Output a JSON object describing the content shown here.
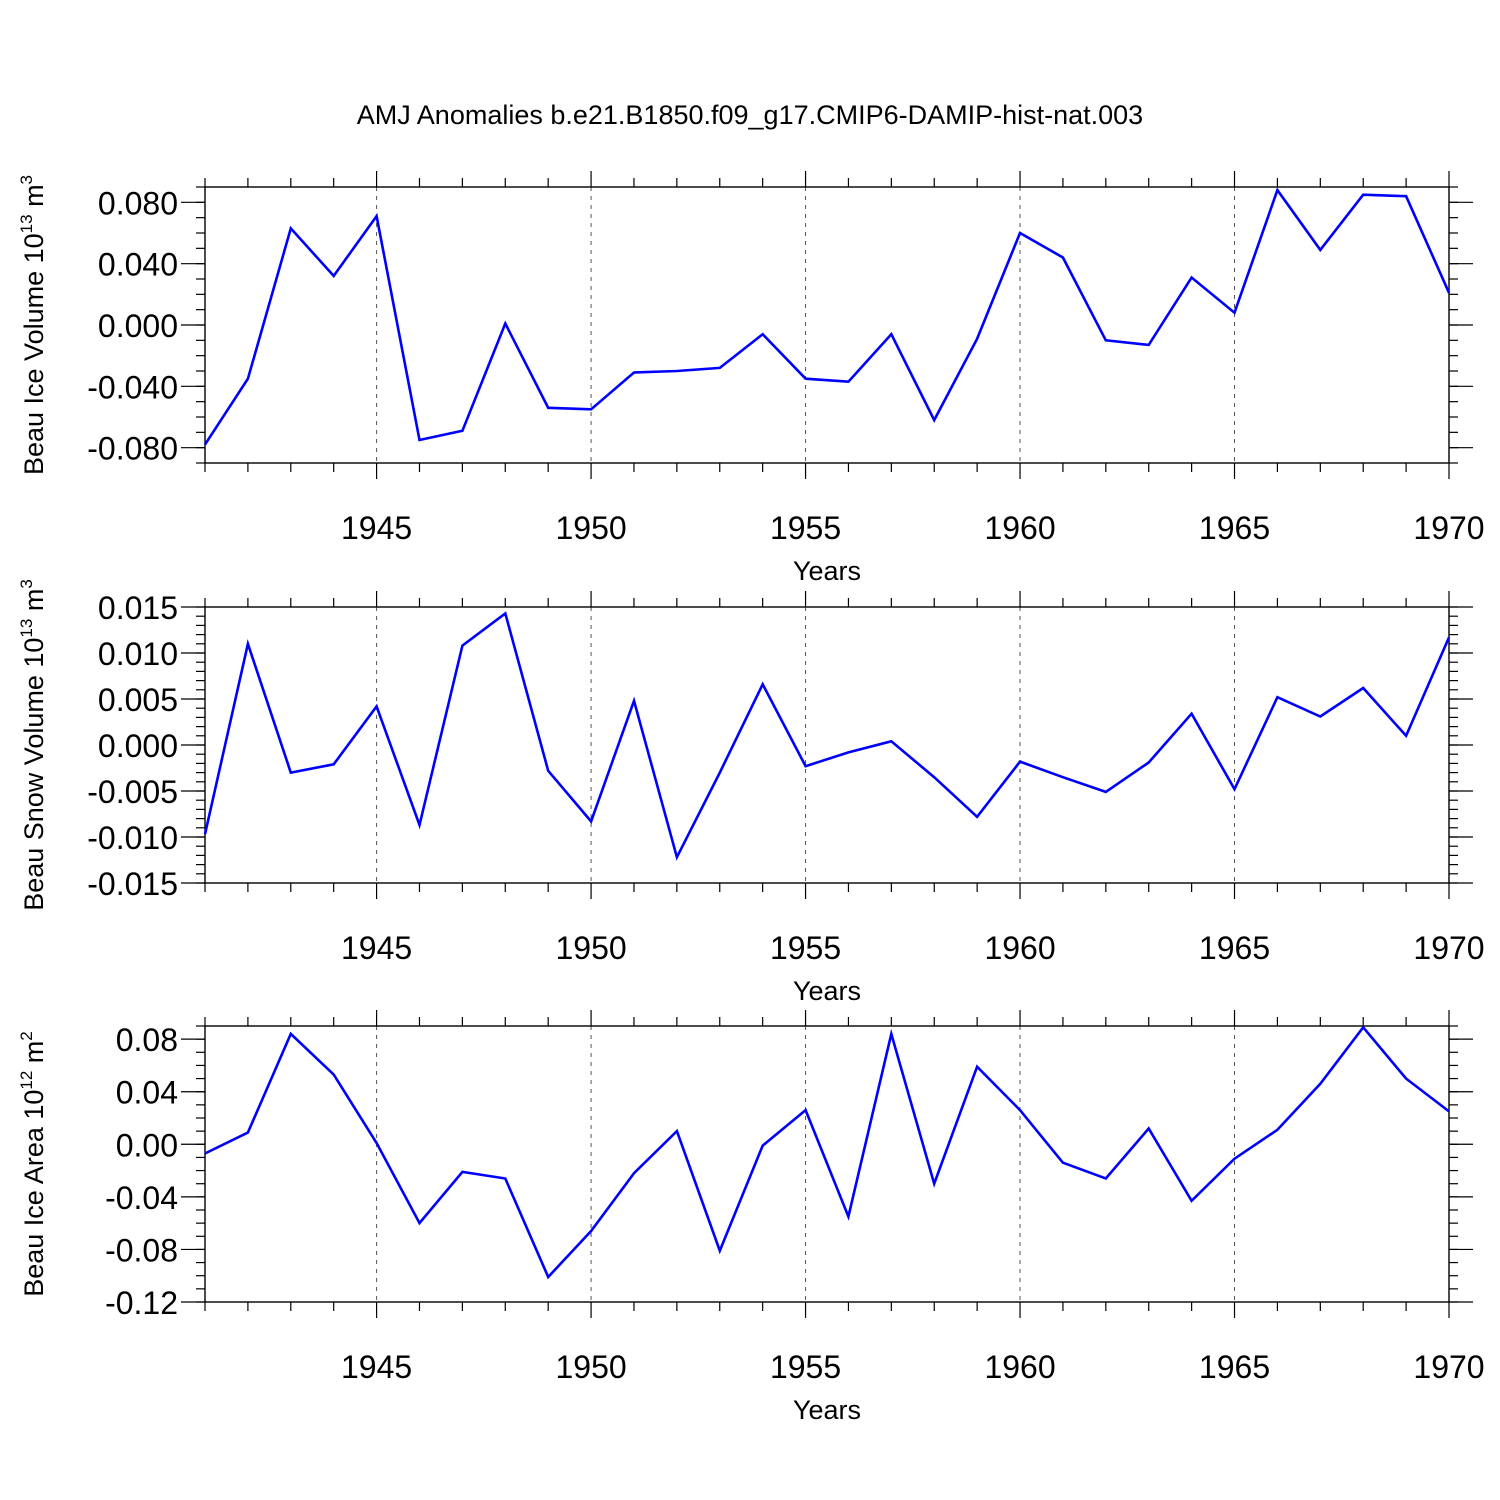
{
  "chart_data": [
    {
      "type": "line",
      "title": "AMJ Anomalies b.e21.B1850.f09_g17.CMIP6-DAMIP-hist-nat.003",
      "ylabel": "Beau Ice Volume 10",
      "ylabel_exponent": "13",
      "ylabel_unit": "m",
      "ylabel_unit_exponent": "3",
      "xlabel": "Years",
      "xlim": [
        1941,
        1970
      ],
      "ylim": [
        -0.09,
        0.09
      ],
      "x_ticks": [
        1945,
        1950,
        1955,
        1960,
        1965,
        1970
      ],
      "y_ticks": [
        -0.08,
        -0.04,
        0.0,
        0.04,
        0.08
      ],
      "y_tick_labels": [
        "-0.080",
        "-0.040",
        "0.000",
        "0.040",
        "0.080"
      ],
      "y_minor_step": 0.01,
      "grid": "dashed vertical at 1945, 1950, 1955, 1960, 1965",
      "series": [
        {
          "name": "Beau Ice Volume",
          "color": "#0000ff",
          "x": [
            1941,
            1942,
            1943,
            1944,
            1945,
            1946,
            1947,
            1948,
            1949,
            1950,
            1951,
            1952,
            1953,
            1954,
            1955,
            1956,
            1957,
            1958,
            1959,
            1960,
            1961,
            1962,
            1963,
            1964,
            1965,
            1966,
            1967,
            1968,
            1969,
            1970
          ],
          "values": [
            -0.078,
            -0.035,
            0.063,
            0.032,
            0.071,
            -0.075,
            -0.069,
            0.001,
            -0.054,
            -0.055,
            -0.031,
            -0.03,
            -0.028,
            -0.006,
            -0.035,
            -0.037,
            -0.006,
            -0.062,
            -0.009,
            0.06,
            0.044,
            -0.01,
            -0.013,
            0.031,
            0.008,
            0.088,
            0.049,
            0.085,
            0.084,
            0.021
          ]
        }
      ]
    },
    {
      "type": "line",
      "ylabel": "Beau Snow Volume 10",
      "ylabel_exponent": "13",
      "ylabel_unit": "m",
      "ylabel_unit_exponent": "3",
      "xlabel": "Years",
      "xlim": [
        1941,
        1970
      ],
      "ylim": [
        -0.015,
        0.015
      ],
      "x_ticks": [
        1945,
        1950,
        1955,
        1960,
        1965,
        1970
      ],
      "y_ticks": [
        -0.015,
        -0.01,
        -0.005,
        0.0,
        0.005,
        0.01,
        0.015
      ],
      "y_tick_labels": [
        "-0.015",
        "-0.010",
        "-0.005",
        "0.000",
        "0.005",
        "0.010",
        "0.015"
      ],
      "y_minor_step": 0.001,
      "grid": "dashed vertical at 1945, 1950, 1955, 1960, 1965",
      "series": [
        {
          "name": "Beau Snow Volume",
          "color": "#0000ff",
          "x": [
            1941,
            1942,
            1943,
            1944,
            1945,
            1946,
            1947,
            1948,
            1949,
            1950,
            1951,
            1952,
            1953,
            1954,
            1955,
            1956,
            1957,
            1958,
            1959,
            1960,
            1961,
            1962,
            1963,
            1964,
            1965,
            1966,
            1967,
            1968,
            1969,
            1970
          ],
          "values": [
            -0.0097,
            0.011,
            -0.003,
            -0.0021,
            0.0042,
            -0.0087,
            0.0108,
            0.0143,
            -0.0028,
            -0.0083,
            0.0048,
            -0.0122,
            -0.003,
            0.0066,
            -0.0023,
            -0.0008,
            0.0004,
            -0.0035,
            -0.0078,
            -0.0018,
            -0.0035,
            -0.0051,
            -0.0019,
            0.0034,
            -0.0048,
            0.0052,
            0.0031,
            0.0062,
            0.001,
            0.0117
          ]
        }
      ]
    },
    {
      "type": "line",
      "ylabel": "Beau Ice Area 10",
      "ylabel_exponent": "12",
      "ylabel_unit": "m",
      "ylabel_unit_exponent": "2",
      "xlabel": "Years",
      "xlim": [
        1941,
        1970
      ],
      "ylim": [
        -0.12,
        0.09
      ],
      "x_ticks": [
        1945,
        1950,
        1955,
        1960,
        1965,
        1970
      ],
      "y_ticks": [
        -0.12,
        -0.08,
        -0.04,
        0.0,
        0.04,
        0.08
      ],
      "y_tick_labels": [
        "-0.12",
        "-0.08",
        "-0.04",
        "0.00",
        "0.04",
        "0.08"
      ],
      "y_minor_step": 0.01,
      "grid": "dashed vertical at 1945, 1950, 1955, 1960, 1965",
      "series": [
        {
          "name": "Beau Ice Area",
          "color": "#0000ff",
          "x": [
            1941,
            1942,
            1943,
            1944,
            1945,
            1946,
            1947,
            1948,
            1949,
            1950,
            1951,
            1952,
            1953,
            1954,
            1955,
            1956,
            1957,
            1958,
            1959,
            1960,
            1961,
            1962,
            1963,
            1964,
            1965,
            1966,
            1967,
            1968,
            1969,
            1970
          ],
          "values": [
            -0.007,
            0.009,
            0.084,
            0.053,
            0.001,
            -0.06,
            -0.021,
            -0.026,
            -0.101,
            -0.066,
            -0.022,
            0.01,
            -0.081,
            -0.001,
            0.026,
            -0.055,
            0.084,
            -0.03,
            0.059,
            0.026,
            -0.014,
            -0.026,
            0.012,
            -0.043,
            -0.011,
            0.011,
            0.046,
            0.089,
            0.05,
            0.025
          ]
        }
      ]
    }
  ]
}
